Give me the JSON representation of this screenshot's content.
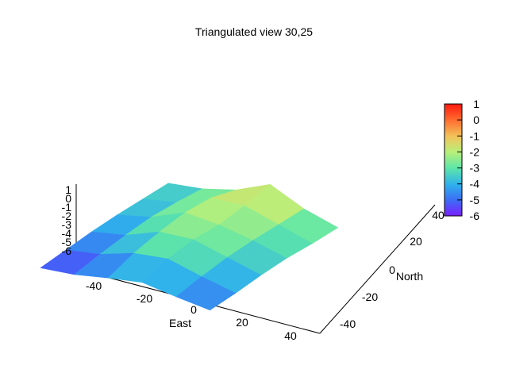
{
  "chart_data": {
    "type": "surface3d",
    "title": "Triangulated view 30,25",
    "view": {
      "rot_x": 30,
      "rot_z": 25
    },
    "xlabel": "East",
    "ylabel": "North",
    "zlabel": "",
    "xlim": [
      -50,
      50
    ],
    "ylim": [
      -50,
      50
    ],
    "zlim": [
      -6,
      1
    ],
    "x_ticks": [
      "-40",
      "-20",
      "0",
      "20",
      "40"
    ],
    "y_ticks": [
      "-40",
      "-20",
      "0",
      "20",
      "40"
    ],
    "z_ticks": [
      "1",
      "0",
      "-1",
      "-2",
      "-3",
      "-4",
      "-5",
      "-6"
    ],
    "colorbar": {
      "range": [
        -6,
        1
      ],
      "ticks": [
        "1",
        "0",
        "-1",
        "-2",
        "-3",
        "-4",
        "-5",
        "-6"
      ],
      "palette": [
        "#7a1fff",
        "#3c6cf5",
        "#2fb1ec",
        "#5ee6a8",
        "#b8f07a",
        "#f2c35a",
        "#ff6a2e",
        "#ff1a10"
      ]
    },
    "surface": {
      "description_units": "approximate height in z data units",
      "rows_north": [
        40,
        25,
        10,
        -5,
        -20,
        -35
      ],
      "cols_east": [
        -40,
        -25,
        -10,
        5,
        20,
        35
      ],
      "z": [
        [
          -3.6,
          -3.2,
          -2.4,
          -1.0,
          -2.3,
          -3.1
        ],
        [
          -3.9,
          -3.3,
          -2.0,
          -1.8,
          -2.6,
          -3.4
        ],
        [
          -4.2,
          -3.5,
          -2.2,
          -2.4,
          -2.9,
          -3.6
        ],
        [
          -4.6,
          -4.0,
          -2.8,
          -2.6,
          -3.3,
          -4.0
        ],
        [
          -5.1,
          -4.6,
          -3.6,
          -3.2,
          -3.9,
          -4.5
        ],
        [
          -5.6,
          -5.3,
          -4.7,
          -4.2,
          -4.6,
          -4.9
        ]
      ]
    }
  }
}
